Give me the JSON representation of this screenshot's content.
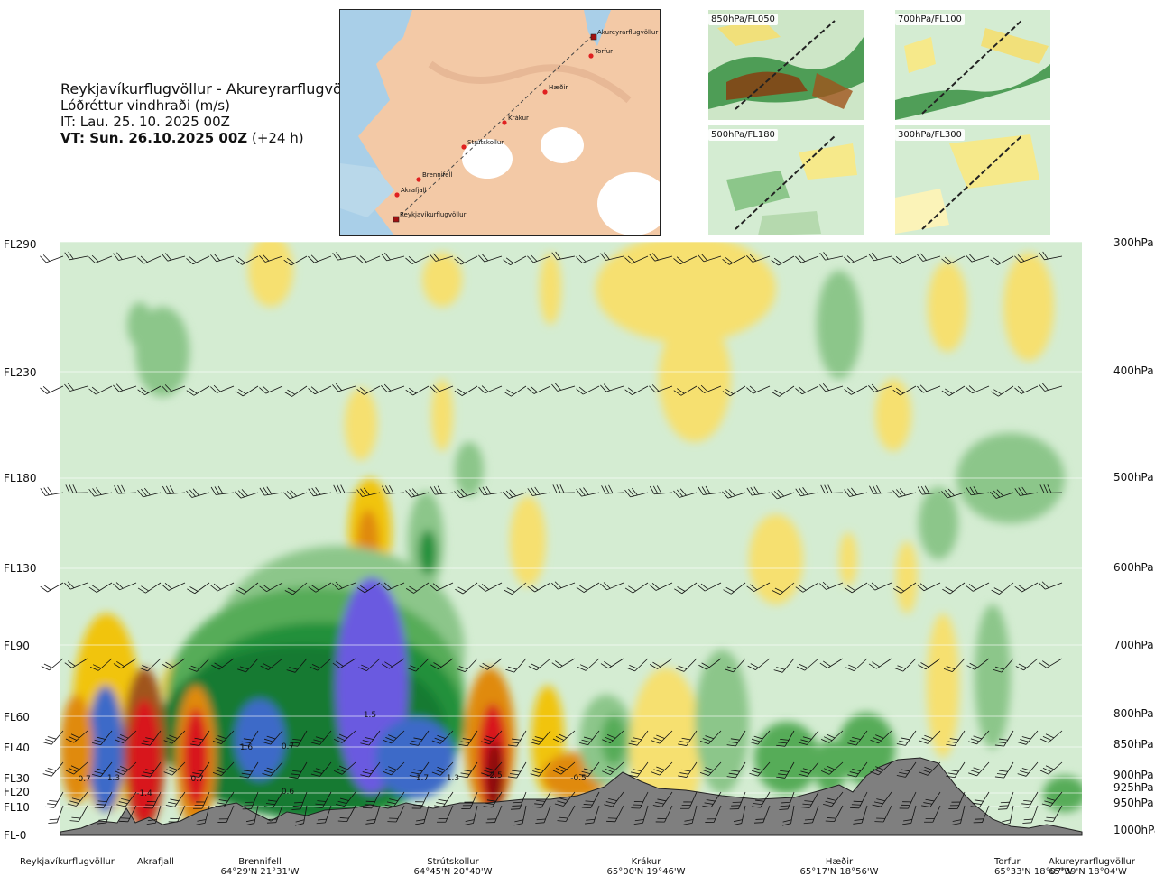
{
  "header": {
    "route": "Reykjavíkurflugvöllur - Akureyrarflugvöllur",
    "variable": "Lóðréttur vindhraði (m/s)",
    "it": "IT: Lau. 25. 10. 2025 00Z",
    "vt_bold": "VT: Sun. 26.10.2025 00Z",
    "vt_offset": "(+24 h)"
  },
  "map": {
    "points": [
      "Reykjavíkurflugvöllur",
      "Akrafjall",
      "Brennifell",
      "Strútskollur",
      "Krákur",
      "Hæðir",
      "Torfur",
      "Akureyrarflugvöllur"
    ]
  },
  "thumbnails": [
    "850hPa/FL050",
    "700hPa/FL100",
    "500hPa/FL180",
    "300hPa/FL300"
  ],
  "colors": {
    "ocean": "#a9cfe8",
    "land": "#f3c9a6",
    "ice": "#ffffff",
    "terrain": "#7f7f7f",
    "background_field": "#d4ecd2"
  },
  "chart_data": {
    "type": "heatmap",
    "title": "Lóðréttur vindhraði (m/s)",
    "x_axis": "distance along route",
    "flight_levels": [
      "FL-0",
      "FL10",
      "FL20",
      "FL30",
      "FL40",
      "FL60",
      "FL90",
      "FL130",
      "FL180",
      "FL230",
      "FL290"
    ],
    "pressure_levels": [
      "1000hPa",
      "950hPa",
      "925hPa",
      "900hPa",
      "850hPa",
      "800hPa",
      "700hPa",
      "600hPa",
      "500hPa",
      "400hPa",
      "300hPa"
    ],
    "locations": [
      {
        "name": "Reykjavíkurflugvöllur",
        "coord": ""
      },
      {
        "name": "Akrafjall",
        "coord": ""
      },
      {
        "name": "Brennifell",
        "coord": "64°29'N 21°31'W"
      },
      {
        "name": "Strútskollur",
        "coord": "64°45'N 20°40'W"
      },
      {
        "name": "Krákur",
        "coord": "65°00'N 19°46'W"
      },
      {
        "name": "Hæðir",
        "coord": "65°17'N 18°56'W"
      },
      {
        "name": "Torfur",
        "coord": "65°33'N 18°07'W"
      },
      {
        "name": "Akureyrarflugvöllur",
        "coord": "65°39'N 18°04'W"
      }
    ],
    "annotations": [
      "-0.7",
      "1.3",
      "-1.4",
      "-0.7",
      "1.6",
      "0.7",
      "0.6",
      "1.5",
      "1.7",
      "1.3",
      "-2.5",
      "-0.5"
    ],
    "color_scale": [
      {
        "value": -2.0,
        "color": "#8b0d0d"
      },
      {
        "value": -1.5,
        "color": "#d8141c"
      },
      {
        "value": -1.0,
        "color": "#a0541c"
      },
      {
        "value": -0.7,
        "color": "#e08a10"
      },
      {
        "value": -0.5,
        "color": "#f1c40f"
      },
      {
        "value": -0.3,
        "color": "#f6e070"
      },
      {
        "value": -0.1,
        "color": "#fbf3b8"
      },
      {
        "value": 0.0,
        "color": "#d4ecd2"
      },
      {
        "value": 0.1,
        "color": "#b5d9ae"
      },
      {
        "value": 0.3,
        "color": "#8cc68a"
      },
      {
        "value": 0.5,
        "color": "#56ac58"
      },
      {
        "value": 0.7,
        "color": "#22903a"
      },
      {
        "value": 1.0,
        "color": "#137a30"
      },
      {
        "value": 1.3,
        "color": "#3e6ac8"
      },
      {
        "value": 1.5,
        "color": "#6a5ae0"
      }
    ]
  }
}
